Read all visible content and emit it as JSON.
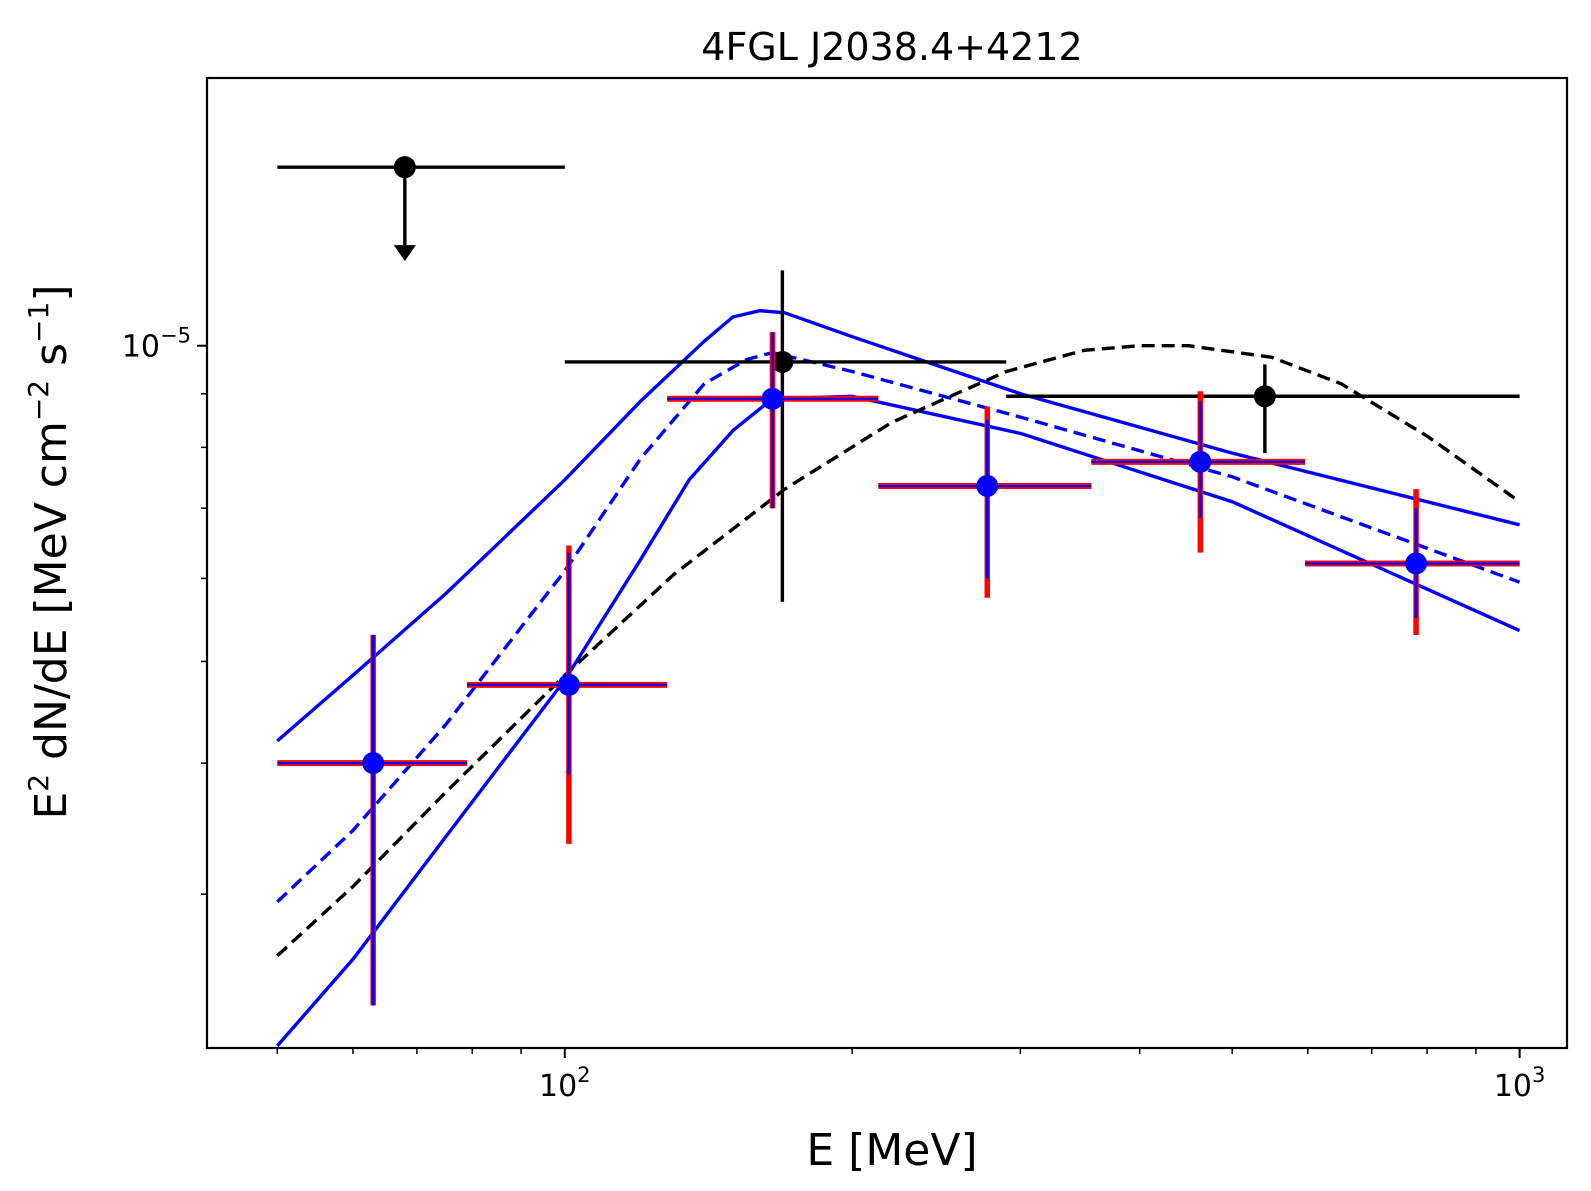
{
  "chart_data": {
    "type": "scatter",
    "title": "4FGL J2038.4+4212",
    "xlabel": "E [MeV]",
    "ylabel": {
      "prefix": "E",
      "sup1": "2",
      "middle": " dN/dE [MeV cm",
      "sup2": "−2",
      "middle2": " s",
      "sup3": "−1",
      "suffix": "]"
    },
    "xscale": "log",
    "yscale": "log",
    "xlim": [
      42.2,
      1121
    ],
    "ylim": [
      2.14e-06,
      1.8e-05
    ],
    "xticks": [
      {
        "value": 100,
        "base": "10",
        "exp": "2"
      },
      {
        "value": 1000,
        "base": "10",
        "exp": "3"
      }
    ],
    "yticks": [
      {
        "value": 1e-05,
        "base": "10",
        "exp": "−5"
      }
    ],
    "colors": {
      "data_black": "#000000",
      "model_blue": "#0000ff",
      "syst_red": "#ff0000",
      "axes": "#000000"
    },
    "series": [
      {
        "name": "upper limit (black)",
        "kind": "upper_limit",
        "color": "#000000",
        "points": [
          {
            "x": 68,
            "y": 1.48e-05,
            "xlo": 50,
            "xhi": 100
          }
        ]
      },
      {
        "name": "black data points",
        "kind": "errorbar",
        "color": "#000000",
        "points": [
          {
            "x": 169,
            "y": 9.65e-06,
            "xlo": 100,
            "xhi": 290,
            "ylo": 5.7e-06,
            "yhi": 1.18e-05
          },
          {
            "x": 541,
            "y": 8.95e-06,
            "xlo": 290,
            "xhi": 1000,
            "ylo": 7.9e-06,
            "yhi": 9.6e-06
          }
        ]
      },
      {
        "name": "blue data points",
        "kind": "errorbar",
        "color": "#0000ff",
        "syst_color": "#ff0000",
        "points": [
          {
            "x": 63,
            "y": 4e-06,
            "xlo": 50,
            "xhi": 79,
            "ylo": 2.35e-06,
            "yhi": 5.3e-06,
            "sys_lo": 2.35e-06,
            "sys_hi": 5.3e-06
          },
          {
            "x": 101,
            "y": 4.75e-06,
            "xlo": 79,
            "xhi": 128,
            "ylo": 3.9e-06,
            "yhi": 6.35e-06,
            "sys_lo": 3.35e-06,
            "sys_hi": 6.45e-06
          },
          {
            "x": 165,
            "y": 8.9e-06,
            "xlo": 128,
            "xhi": 213,
            "ylo": 7e-06,
            "yhi": 1.03e-05,
            "sys_lo": 7e-06,
            "sys_hi": 1.03e-05
          },
          {
            "x": 277,
            "y": 7.35e-06,
            "xlo": 213,
            "xhi": 356,
            "ylo": 6e-06,
            "yhi": 8.5e-06,
            "sys_lo": 5.75e-06,
            "sys_hi": 8.75e-06
          },
          {
            "x": 463,
            "y": 7.75e-06,
            "xlo": 356,
            "xhi": 596,
            "ylo": 6.85e-06,
            "yhi": 8.85e-06,
            "sys_lo": 6.35e-06,
            "sys_hi": 9.05e-06
          },
          {
            "x": 779,
            "y": 6.2e-06,
            "xlo": 596,
            "xhi": 1000,
            "ylo": 5.5e-06,
            "yhi": 7e-06,
            "sys_lo": 5.3e-06,
            "sys_hi": 7.3e-06
          }
        ]
      },
      {
        "name": "blue model upper band",
        "kind": "line",
        "style": "solid",
        "color": "#0000ff",
        "x": [
          50,
          60,
          75,
          100,
          120,
          140,
          150,
          160,
          170,
          200,
          300,
          500,
          1000
        ],
        "y": [
          4.2e-06,
          4.85e-06,
          5.8e-06,
          7.45e-06,
          8.85e-06,
          1.01e-05,
          1.065e-05,
          1.08e-05,
          1.075e-05,
          1.02e-05,
          9e-06,
          7.9e-06,
          6.75e-06
        ]
      },
      {
        "name": "blue model lower band",
        "kind": "line",
        "style": "solid",
        "color": "#0000ff",
        "x": [
          50,
          60,
          75,
          100,
          120,
          135,
          150,
          165,
          200,
          300,
          500,
          1000
        ],
        "y": [
          2.15e-06,
          2.6e-06,
          3.4e-06,
          4.8e-06,
          6.25e-06,
          7.45e-06,
          8.3e-06,
          8.9e-06,
          8.95e-06,
          8.25e-06,
          7.1e-06,
          5.35e-06
        ]
      },
      {
        "name": "blue model best fit",
        "kind": "line",
        "style": "dashed",
        "color": "#0000ff",
        "x": [
          50,
          60,
          75,
          100,
          120,
          140,
          155,
          165,
          200,
          300,
          500,
          1000
        ],
        "y": [
          2.95e-06,
          3.45e-06,
          4.35e-06,
          6.1e-06,
          7.8e-06,
          9.2e-06,
          9.7e-06,
          9.85e-06,
          9.45e-06,
          8.55e-06,
          7.5e-06,
          5.95e-06
        ]
      },
      {
        "name": "black model",
        "kind": "line",
        "style": "dashed",
        "color": "#000000",
        "x": [
          50,
          60,
          75,
          100,
          130,
          170,
          220,
          290,
          350,
          400,
          450,
          550,
          650,
          800,
          1000
        ],
        "y": [
          2.62e-06,
          3.05e-06,
          3.75e-06,
          4.85e-06,
          6.05e-06,
          7.3e-06,
          8.45e-06,
          9.45e-06,
          9.9e-06,
          1e-05,
          1e-05,
          9.75e-06,
          9.2e-06,
          8.2e-06,
          7.1e-06
        ]
      }
    ]
  }
}
